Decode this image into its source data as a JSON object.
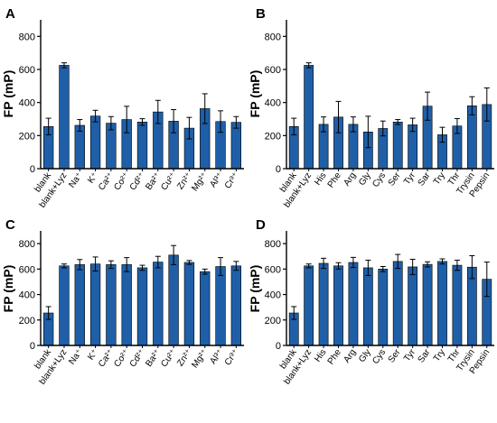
{
  "bar_color": "#1f5fa8",
  "axis_color": "#000000",
  "chart_data": [
    {
      "panel": "A",
      "type": "bar",
      "ylabel": "FP (mP)",
      "ylim": [
        0,
        900
      ],
      "yticks": [
        "0",
        "200",
        "400",
        "600",
        "800"
      ],
      "categories": [
        "blank",
        "blank+Lyz",
        "Na⁺",
        "K⁺",
        "Ca²⁺",
        "Co²⁺",
        "Cd²⁺",
        "Ba²⁺",
        "Cu²⁺",
        "Zn²⁺",
        "Mg²⁺",
        "Al³⁺",
        "Cr³⁺"
      ],
      "values": [
        255,
        625,
        262,
        318,
        275,
        297,
        282,
        343,
        287,
        245,
        363,
        285,
        280
      ],
      "errors": [
        50,
        15,
        35,
        35,
        40,
        80,
        20,
        70,
        70,
        65,
        90,
        65,
        35
      ]
    },
    {
      "panel": "B",
      "type": "bar",
      "ylabel": "FP (mP)",
      "ylim": [
        0,
        900
      ],
      "yticks": [
        "0",
        "200",
        "400",
        "600",
        "800"
      ],
      "categories": [
        "blank",
        "blank+Lyz",
        "His",
        "Phe",
        "Arg",
        "Gly",
        "Cys",
        "Ser",
        "Tyr",
        "Sar",
        "Try",
        "Thr",
        "Trysin",
        "Pepsin"
      ],
      "values": [
        255,
        625,
        268,
        312,
        268,
        222,
        243,
        282,
        265,
        378,
        205,
        258,
        380,
        388
      ],
      "errors": [
        50,
        15,
        45,
        95,
        45,
        95,
        45,
        15,
        40,
        85,
        45,
        45,
        55,
        100
      ]
    },
    {
      "panel": "C",
      "type": "bar",
      "ylabel": "FP (mP)",
      "ylim": [
        0,
        900
      ],
      "yticks": [
        "0",
        "200",
        "400",
        "600",
        "800"
      ],
      "categories": [
        "blank",
        "blank+Lyz",
        "Na⁺",
        "K⁺",
        "Ca²⁺",
        "Co²⁺",
        "Cd²⁺",
        "Ba²⁺",
        "Cu²⁺",
        "Zn²⁺",
        "Mg²⁺",
        "Al³⁺",
        "Cr³⁺"
      ],
      "values": [
        255,
        625,
        635,
        640,
        635,
        635,
        610,
        655,
        710,
        652,
        580,
        620,
        625
      ],
      "errors": [
        50,
        15,
        40,
        55,
        30,
        55,
        20,
        45,
        75,
        15,
        20,
        70,
        35
      ]
    },
    {
      "panel": "D",
      "type": "bar",
      "ylabel": "FP (mP)",
      "ylim": [
        0,
        900
      ],
      "yticks": [
        "0",
        "200",
        "400",
        "600",
        "800"
      ],
      "categories": [
        "blank",
        "blank+Lyz",
        "His",
        "Phe",
        "Arg",
        "Gly",
        "Cys",
        "Ser",
        "Tyr",
        "Sar",
        "Try",
        "Thr",
        "Trysin",
        "Pepsin"
      ],
      "values": [
        255,
        625,
        645,
        625,
        652,
        610,
        600,
        660,
        617,
        637,
        660,
        630,
        615,
        520
      ],
      "errors": [
        50,
        15,
        40,
        25,
        40,
        60,
        20,
        55,
        60,
        20,
        20,
        40,
        90,
        135
      ]
    }
  ]
}
